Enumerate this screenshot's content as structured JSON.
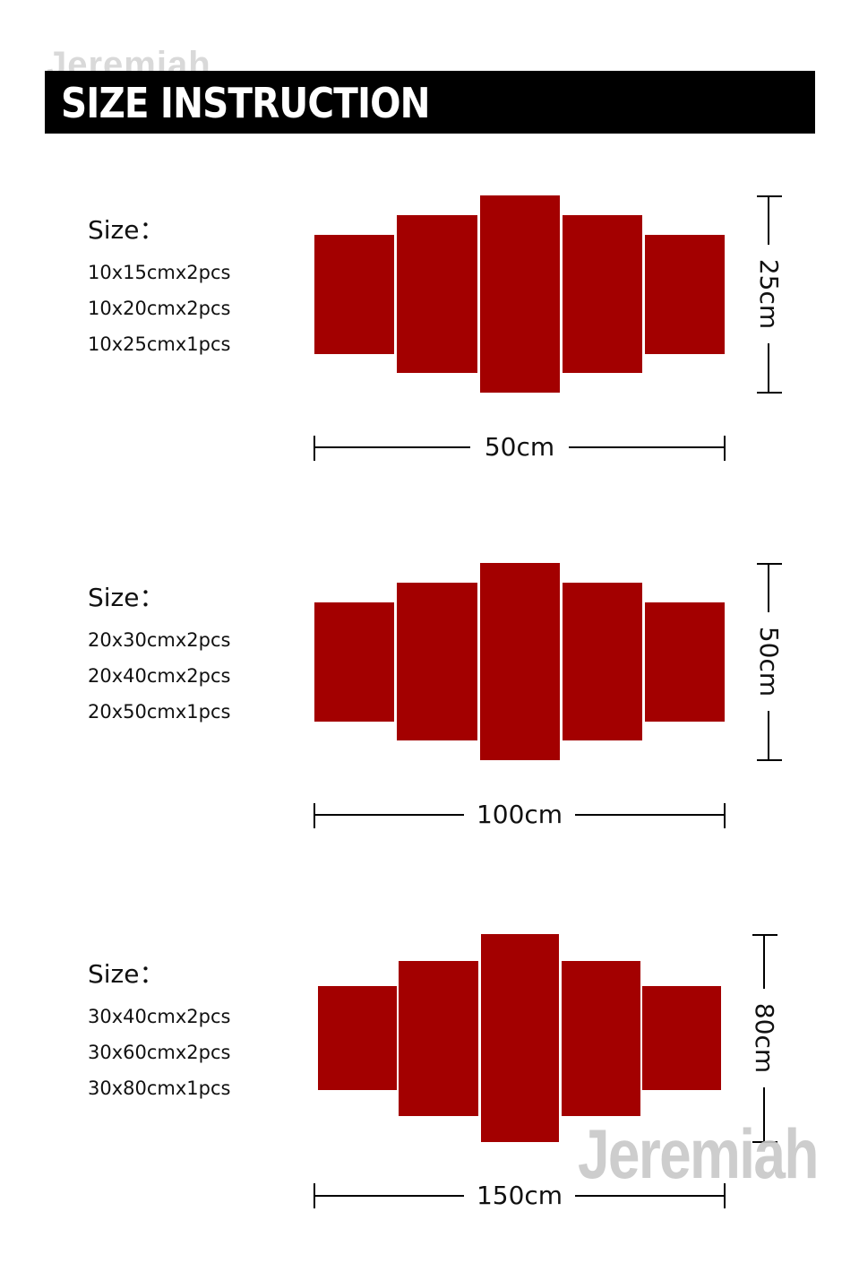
{
  "watermark": "Jeremiah",
  "header": {
    "title": "SIZE INSTRUCTION"
  },
  "sections": [
    {
      "size_label": "Size：",
      "pieces": [
        "10x15cmx2pcs",
        "10x20cmx2pcs",
        "10x25cmx1pcs"
      ],
      "width_label": "50cm",
      "height_label": "25cm"
    },
    {
      "size_label": "Size：",
      "pieces": [
        "20x30cmx2pcs",
        "20x40cmx2pcs",
        "20x50cmx1pcs"
      ],
      "width_label": "100cm",
      "height_label": "50cm"
    },
    {
      "size_label": "Size：",
      "pieces": [
        "30x40cmx2pcs",
        "30x60cmx2pcs",
        "30x80cmx1pcs"
      ],
      "width_label": "150cm",
      "height_label": "80cm"
    }
  ],
  "colors": {
    "panel": "#a30000",
    "header_bg": "#000000",
    "header_text": "#ffffff"
  }
}
